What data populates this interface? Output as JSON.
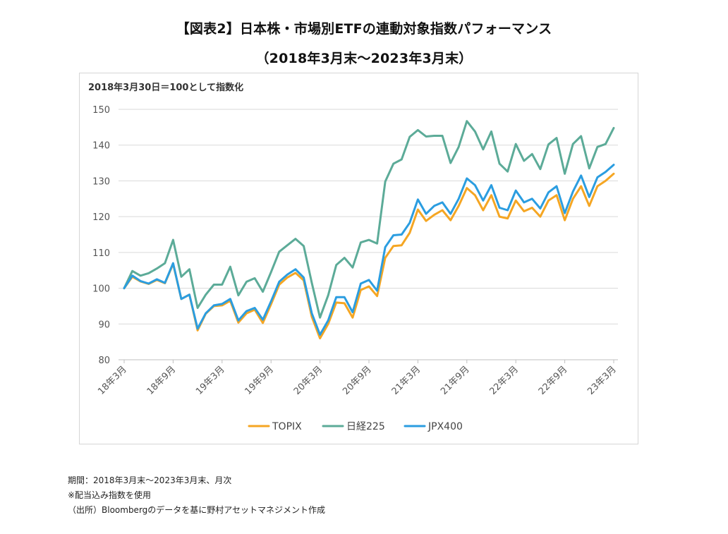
{
  "title": {
    "line1": "【図表2】日本株・市場別ETFの連動対象指数パフォーマンス",
    "line2": "（2018年3月末～2023年3月末）"
  },
  "chart_data": {
    "type": "line",
    "note": "2018年3月30日＝100として指数化",
    "xlabel": "",
    "ylabel": "",
    "ylim": [
      80,
      150
    ],
    "yticks": [
      80,
      90,
      100,
      110,
      120,
      130,
      140,
      150
    ],
    "grid": true,
    "legend_position": "bottom",
    "x": [
      "18年3月",
      "18年4月",
      "18年5月",
      "18年6月",
      "18年7月",
      "18年8月",
      "18年9月",
      "18年10月",
      "18年11月",
      "18年12月",
      "19年1月",
      "19年2月",
      "19年3月",
      "19年4月",
      "19年5月",
      "19年6月",
      "19年7月",
      "19年8月",
      "19年9月",
      "19年10月",
      "19年11月",
      "19年12月",
      "20年1月",
      "20年2月",
      "20年3月",
      "20年4月",
      "20年5月",
      "20年6月",
      "20年7月",
      "20年8月",
      "20年9月",
      "20年10月",
      "20年11月",
      "20年12月",
      "21年1月",
      "21年2月",
      "21年3月",
      "21年4月",
      "21年5月",
      "21年6月",
      "21年7月",
      "21年8月",
      "21年9月",
      "21年10月",
      "21年11月",
      "21年12月",
      "22年1月",
      "22年2月",
      "22年3月",
      "22年4月",
      "22年5月",
      "22年6月",
      "22年7月",
      "22年8月",
      "22年9月",
      "22年10月",
      "22年11月",
      "22年12月",
      "23年1月",
      "23年2月",
      "23年3月"
    ],
    "xtick_labels": [
      "18年3月",
      "18年9月",
      "19年3月",
      "19年9月",
      "20年3月",
      "20年9月",
      "21年3月",
      "21年9月",
      "22年3月",
      "22年9月",
      "23年3月"
    ],
    "xtick_index": [
      0,
      6,
      12,
      18,
      24,
      30,
      36,
      42,
      48,
      54,
      60
    ],
    "series": [
      {
        "name": "TOPIX",
        "color": "#f5a623",
        "values": [
          100,
          103.2,
          101.9,
          101.2,
          102.3,
          101.4,
          106.8,
          97.0,
          98.2,
          88.2,
          92.9,
          95.0,
          95.2,
          96.5,
          90.4,
          93.0,
          94.0,
          90.3,
          95.5,
          101.0,
          103.0,
          104.3,
          102.2,
          92.0,
          86.0,
          90.0,
          96.0,
          95.8,
          91.8,
          99.5,
          100.5,
          97.8,
          108.5,
          111.8,
          112.0,
          115.5,
          122.0,
          118.8,
          120.5,
          121.8,
          119.0,
          123.0,
          128.0,
          126.0,
          121.8,
          126.0,
          120.0,
          119.5,
          124.5,
          121.5,
          122.5,
          120.0,
          124.5,
          126.0,
          119.0,
          125.0,
          128.5,
          123.0,
          128.5,
          130.0,
          132.0
        ]
      },
      {
        "name": "日経225",
        "color": "#5cab98",
        "values": [
          100,
          104.8,
          103.5,
          104.2,
          105.5,
          107.0,
          113.5,
          103.2,
          105.3,
          94.5,
          98.2,
          101.0,
          101.0,
          106.0,
          98.0,
          101.8,
          102.8,
          99.0,
          104.5,
          110.2,
          112.0,
          113.8,
          111.8,
          101.5,
          91.8,
          98.0,
          106.5,
          108.5,
          105.8,
          112.8,
          113.5,
          112.5,
          129.8,
          134.8,
          136.0,
          142.3,
          144.2,
          142.4,
          142.6,
          142.6,
          135.0,
          139.5,
          146.7,
          143.8,
          138.8,
          143.8,
          134.8,
          132.6,
          140.3,
          135.6,
          137.5,
          133.3,
          140.2,
          142.0,
          132.0,
          140.3,
          142.5,
          133.5,
          139.5,
          140.3,
          144.8
        ]
      },
      {
        "name": "JPX400",
        "color": "#2b9de0",
        "values": [
          100,
          103.5,
          102.0,
          101.3,
          102.5,
          101.5,
          107.0,
          97.0,
          98.2,
          88.7,
          93.0,
          95.2,
          95.6,
          97.0,
          91.0,
          93.6,
          94.5,
          91.2,
          96.3,
          101.8,
          103.8,
          105.3,
          103.0,
          93.0,
          87.0,
          91.0,
          97.5,
          97.5,
          93.3,
          101.3,
          102.3,
          99.3,
          111.5,
          114.8,
          115.0,
          118.3,
          124.8,
          120.8,
          123.0,
          124.0,
          120.8,
          125.0,
          130.7,
          128.8,
          124.5,
          128.8,
          122.5,
          121.8,
          127.3,
          124.0,
          125.0,
          122.3,
          126.8,
          128.5,
          121.0,
          127.0,
          131.5,
          125.5,
          131.0,
          132.5,
          134.5
        ]
      }
    ]
  },
  "footnotes": {
    "period": "期間：2018年3月末～2023年3月末、月次",
    "note": "※配当込み指数を使用",
    "source": "（出所）Bloombergのデータを基に野村アセットマネジメント作成"
  }
}
